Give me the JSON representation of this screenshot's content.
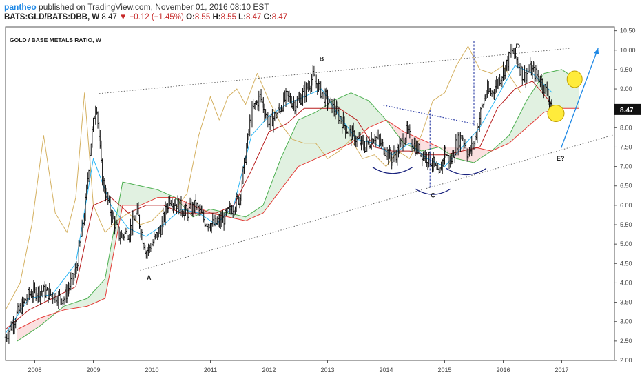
{
  "header": {
    "author": "pantheo",
    "published_text": "published on TradingView.com, November 01, 2016 08:10 EST",
    "symbol": "BATS:GLD/BATS:DBB, W",
    "last": "8.47",
    "change": "▼ −0.12 (−1.45%)",
    "o_label": "O:",
    "o_value": "8.55",
    "h_label": "H:",
    "h_value": "8.55",
    "l_label": "L:",
    "l_value": "8.47",
    "c_label": "C:",
    "c_value": "8.47"
  },
  "chart_data": {
    "type": "line",
    "title": "GOLD / BASE METALS RATIO, W",
    "xlabel": "",
    "ylabel": "",
    "xlim": [
      2007.5,
      2017.9
    ],
    "ylim": [
      2.0,
      10.6
    ],
    "x_ticks": [
      "2008",
      "2009",
      "2010",
      "2011",
      "2012",
      "2013",
      "2014",
      "2015",
      "2016",
      "2017"
    ],
    "y_ticks": [
      "2.00",
      "2.50",
      "3.00",
      "3.50",
      "4.00",
      "4.50",
      "5.00",
      "5.50",
      "6.00",
      "6.50",
      "7.00",
      "7.50",
      "8.00",
      "8.50",
      "9.00",
      "9.50",
      "10.00",
      "10.50"
    ],
    "last_price": "8.47",
    "grid": false,
    "series": [
      {
        "name": "",
        "role": "price",
        "x": [
          2007.5,
          2007.7,
          2007.9,
          2008.1,
          2008.3,
          2008.5,
          2008.7,
          2008.85,
          2008.95,
          2009.05,
          2009.15,
          2009.3,
          2009.45,
          2009.6,
          2009.75,
          2009.9,
          2010.0,
          2010.15,
          2010.3,
          2010.45,
          2010.6,
          2010.75,
          2010.9,
          2011.05,
          2011.2,
          2011.35,
          2011.5,
          2011.6,
          2011.7,
          2011.85,
          2012.0,
          2012.15,
          2012.3,
          2012.45,
          2012.6,
          2012.75,
          2012.9,
          2013.05,
          2013.2,
          2013.35,
          2013.5,
          2013.65,
          2013.8,
          2013.95,
          2014.1,
          2014.2,
          2014.35,
          2014.5,
          2014.65,
          2014.8,
          2014.9,
          2015.0,
          2015.1,
          2015.2,
          2015.3,
          2015.4,
          2015.5,
          2015.6,
          2015.7,
          2015.8,
          2015.95,
          2016.05,
          2016.15,
          2016.25,
          2016.35,
          2016.45,
          2016.55,
          2016.65,
          2016.75,
          2016.84
        ],
        "y": [
          2.6,
          3.2,
          3.7,
          3.8,
          3.7,
          3.6,
          4.3,
          5.8,
          7.5,
          8.7,
          6.7,
          5.8,
          5.2,
          5.3,
          5.8,
          4.8,
          5.0,
          5.4,
          6.2,
          6.0,
          5.8,
          6.0,
          5.6,
          5.5,
          5.6,
          5.9,
          6.2,
          7.3,
          8.4,
          8.8,
          8.1,
          8.4,
          8.8,
          8.6,
          8.9,
          9.3,
          8.9,
          8.6,
          8.3,
          7.9,
          7.7,
          7.5,
          7.8,
          7.5,
          7.2,
          7.4,
          7.9,
          7.5,
          7.3,
          7.1,
          6.7,
          7.4,
          7.1,
          7.6,
          7.8,
          7.3,
          7.6,
          8.3,
          8.9,
          8.9,
          9.3,
          9.6,
          10.0,
          9.7,
          9.3,
          9.5,
          9.4,
          9.2,
          8.9,
          8.47
        ]
      },
      {
        "name": "",
        "role": "tenkan",
        "x": [
          2007.5,
          2007.9,
          2008.3,
          2008.7,
          2009.0,
          2009.3,
          2009.6,
          2009.9,
          2010.2,
          2010.5,
          2010.8,
          2011.1,
          2011.4,
          2011.7,
          2012.0,
          2012.3,
          2012.6,
          2012.9,
          2013.2,
          2013.5,
          2013.8,
          2014.1,
          2014.4,
          2014.7,
          2015.0,
          2015.3,
          2015.6,
          2015.9,
          2016.2,
          2016.5,
          2016.84
        ],
        "y": [
          2.7,
          3.6,
          3.7,
          4.5,
          7.2,
          6.0,
          5.4,
          5.2,
          5.5,
          5.9,
          5.8,
          5.5,
          6.0,
          7.8,
          8.3,
          8.6,
          8.8,
          9.0,
          8.3,
          7.7,
          7.6,
          7.3,
          7.6,
          7.2,
          7.0,
          7.5,
          8.0,
          8.8,
          9.6,
          9.4,
          8.9
        ]
      },
      {
        "name": "",
        "role": "kijun",
        "x": [
          2007.5,
          2007.9,
          2008.3,
          2008.7,
          2009.0,
          2009.3,
          2009.6,
          2009.9,
          2010.2,
          2010.5,
          2010.8,
          2011.1,
          2011.4,
          2011.7,
          2012.0,
          2012.3,
          2012.6,
          2012.9,
          2013.2,
          2013.5,
          2013.8,
          2014.1,
          2014.4,
          2014.7,
          2015.0,
          2015.3,
          2015.6,
          2015.9,
          2016.2,
          2016.5,
          2016.84
        ],
        "y": [
          2.8,
          3.3,
          3.6,
          3.9,
          6.0,
          6.2,
          5.8,
          6.0,
          6.0,
          5.8,
          5.8,
          5.8,
          6.0,
          6.9,
          7.9,
          8.1,
          8.5,
          8.5,
          8.5,
          8.2,
          7.5,
          7.4,
          7.4,
          7.3,
          7.3,
          7.4,
          7.5,
          8.5,
          9.0,
          9.2,
          8.6
        ]
      },
      {
        "name": "",
        "role": "senkou-a",
        "x": [
          2007.7,
          2008.1,
          2008.5,
          2008.9,
          2009.2,
          2009.5,
          2009.8,
          2010.1,
          2010.4,
          2010.7,
          2011.0,
          2011.3,
          2011.6,
          2011.9,
          2012.2,
          2012.5,
          2012.8,
          2013.1,
          2013.4,
          2013.7,
          2014.0,
          2014.3,
          2014.6,
          2014.9,
          2015.2,
          2015.5,
          2015.8,
          2016.1,
          2016.4,
          2016.7,
          2017.0,
          2017.3
        ],
        "y": [
          2.5,
          2.9,
          3.4,
          3.6,
          4.1,
          6.6,
          6.5,
          6.4,
          6.2,
          5.7,
          5.9,
          5.8,
          5.7,
          6.0,
          7.2,
          8.2,
          8.4,
          8.7,
          8.9,
          8.7,
          8.2,
          7.6,
          7.4,
          7.5,
          7.2,
          7.1,
          7.4,
          7.8,
          8.7,
          9.4,
          9.5,
          9.2
        ]
      },
      {
        "name": "",
        "role": "senkou-b",
        "x": [
          2007.7,
          2008.1,
          2008.5,
          2008.9,
          2009.2,
          2009.5,
          2009.8,
          2010.1,
          2010.4,
          2010.7,
          2011.0,
          2011.3,
          2011.6,
          2011.9,
          2012.2,
          2012.5,
          2012.8,
          2013.1,
          2013.4,
          2013.7,
          2014.0,
          2014.3,
          2014.6,
          2014.9,
          2015.2,
          2015.5,
          2015.8,
          2016.1,
          2016.4,
          2016.7,
          2017.0,
          2017.3
        ],
        "y": [
          2.8,
          3.1,
          3.3,
          3.4,
          3.6,
          6.0,
          6.0,
          6.2,
          6.2,
          6.0,
          5.8,
          5.7,
          5.6,
          5.8,
          6.4,
          7.0,
          7.2,
          7.4,
          7.6,
          8.0,
          8.2,
          7.9,
          7.7,
          7.5,
          7.5,
          7.5,
          7.4,
          7.6,
          8.0,
          8.4,
          8.5,
          8.5
        ]
      },
      {
        "name": "",
        "role": "chikou",
        "x": [
          2007.5,
          2007.75,
          2007.95,
          2008.15,
          2008.35,
          2008.55,
          2008.7,
          2008.85,
          2009.0,
          2009.2,
          2009.4,
          2009.6,
          2009.8,
          2010.0,
          2010.2,
          2010.4,
          2010.6,
          2010.8,
          2011.0,
          2011.15,
          2011.3,
          2011.45,
          2011.6,
          2011.8,
          2012.0,
          2012.2,
          2012.4,
          2012.6,
          2012.8,
          2013.0,
          2013.2,
          2013.4,
          2013.6,
          2013.8,
          2014.0,
          2014.2,
          2014.4,
          2014.6,
          2014.8,
          2015.0,
          2015.2,
          2015.4,
          2015.6,
          2015.8,
          2016.0,
          2016.3
        ],
        "y": [
          3.3,
          4.0,
          5.5,
          7.8,
          5.8,
          5.3,
          6.2,
          8.9,
          6.0,
          5.3,
          5.6,
          5.8,
          5.5,
          5.6,
          5.9,
          5.9,
          6.3,
          7.8,
          8.8,
          8.2,
          8.8,
          9.0,
          8.6,
          9.4,
          8.7,
          8.1,
          7.7,
          7.6,
          7.6,
          7.2,
          7.4,
          7.7,
          7.2,
          7.3,
          7.0,
          7.4,
          7.2,
          7.8,
          8.7,
          8.9,
          9.6,
          10.1,
          9.5,
          9.4,
          9.6,
          8.9
        ]
      }
    ],
    "annotations": [
      {
        "label": "A",
        "x": 2009.95,
        "y": 4.08
      },
      {
        "label": "B",
        "x": 2012.9,
        "y": 9.72
      },
      {
        "label": "C",
        "x": 2014.8,
        "y": 6.2
      },
      {
        "label": "D",
        "x": 2016.25,
        "y": 10.05
      },
      {
        "label": "E?",
        "x": 2016.98,
        "y": 7.15
      }
    ]
  }
}
